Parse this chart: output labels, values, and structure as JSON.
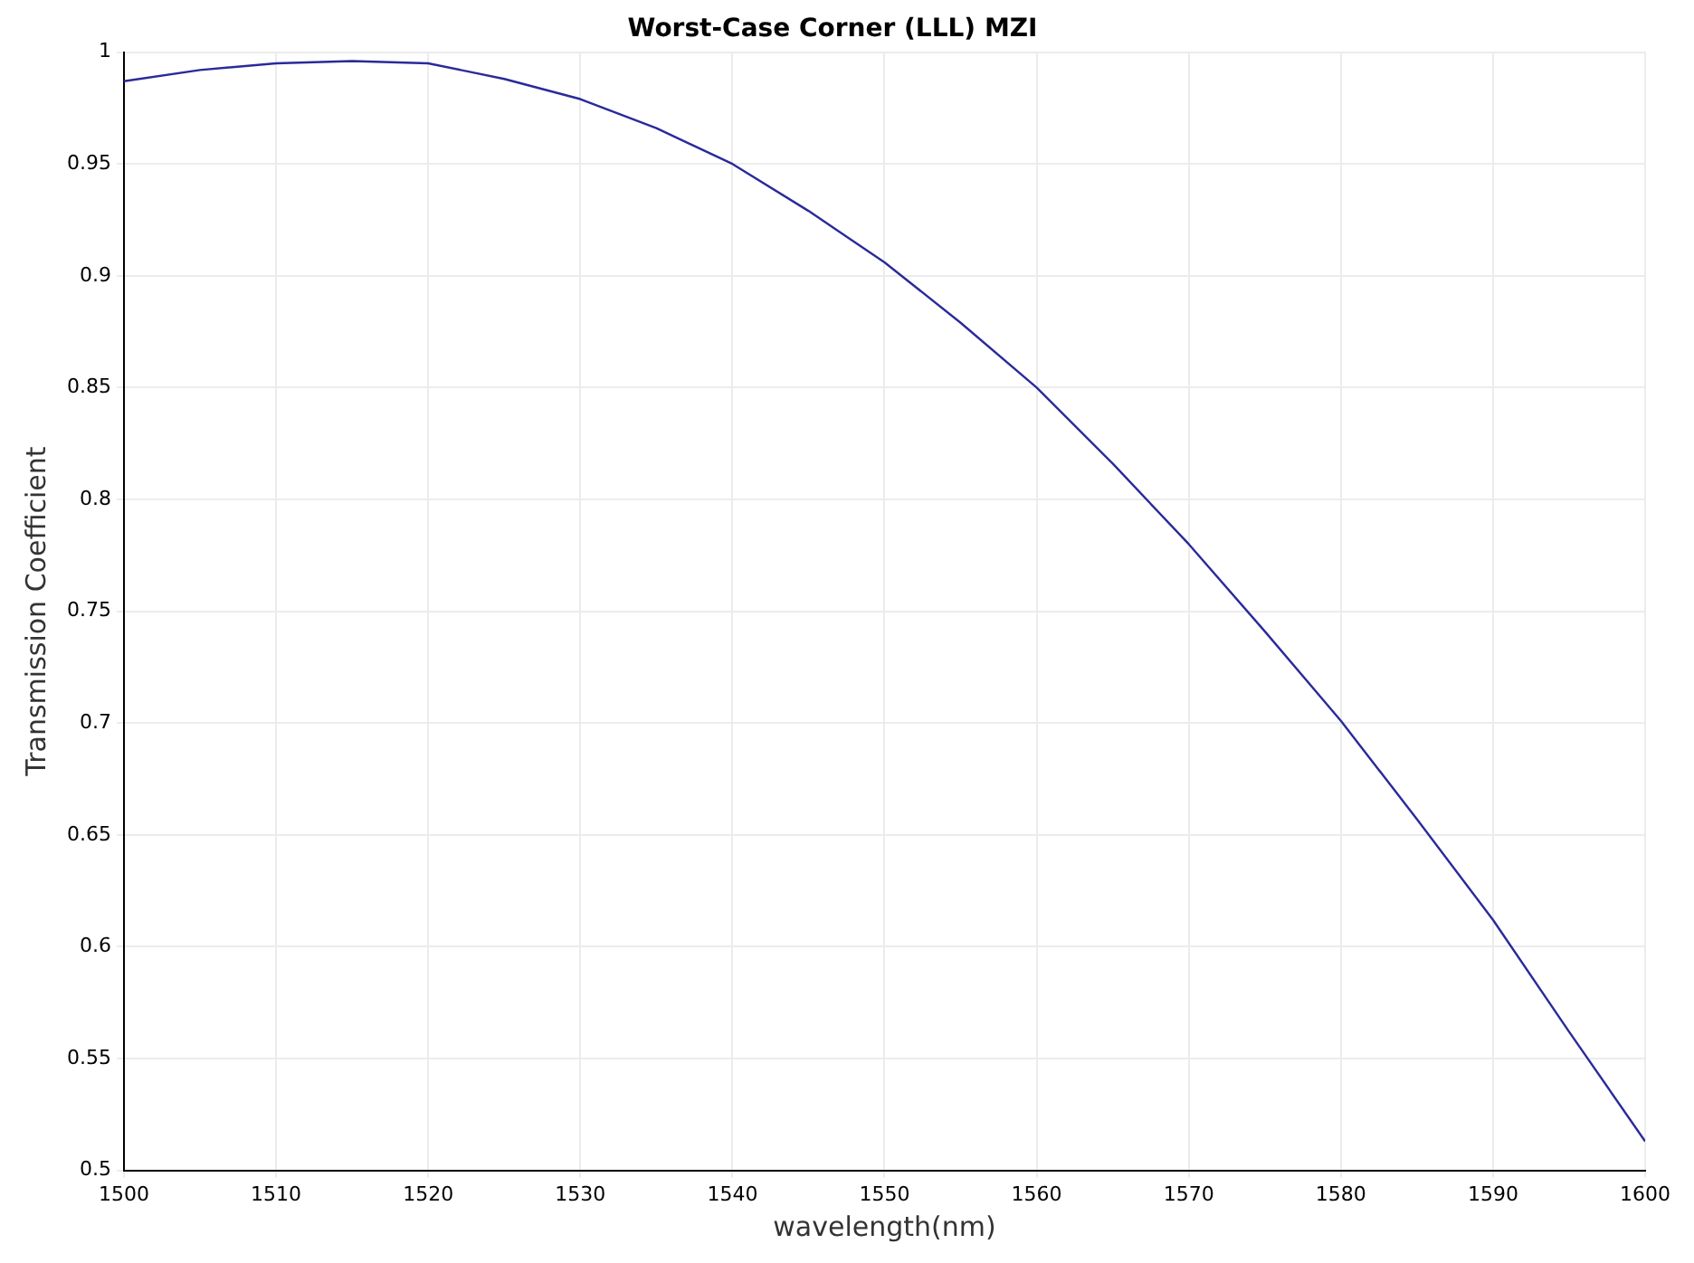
{
  "chart_data": {
    "type": "line",
    "title": "Worst-Case Corner (LLL) MZI",
    "xlabel": "wavelength(nm)",
    "ylabel": "Transmission Coefficient",
    "x": [
      1500,
      1505,
      1510,
      1515,
      1520,
      1525,
      1530,
      1535,
      1540,
      1545,
      1550,
      1555,
      1560,
      1565,
      1570,
      1575,
      1580,
      1585,
      1590,
      1595,
      1600
    ],
    "series": [
      {
        "color": "#2a2a9a",
        "values": [
          0.987,
          0.992,
          0.995,
          0.996,
          0.995,
          0.988,
          0.979,
          0.966,
          0.95,
          0.929,
          0.906,
          0.879,
          0.85,
          0.816,
          0.78,
          0.741,
          0.701,
          0.657,
          0.612,
          0.562,
          0.513
        ]
      }
    ],
    "xlim": [
      1500,
      1600
    ],
    "xticks": [
      1500,
      1510,
      1520,
      1530,
      1540,
      1550,
      1560,
      1570,
      1580,
      1590,
      1600
    ],
    "ylim": [
      0.5,
      1
    ],
    "yticks": [
      0.5,
      0.55,
      0.6,
      0.65,
      0.7,
      0.75,
      0.8,
      0.85,
      0.9,
      0.95,
      1
    ],
    "grid": true,
    "legend": false,
    "marker": "none",
    "line_style": "solid"
  }
}
